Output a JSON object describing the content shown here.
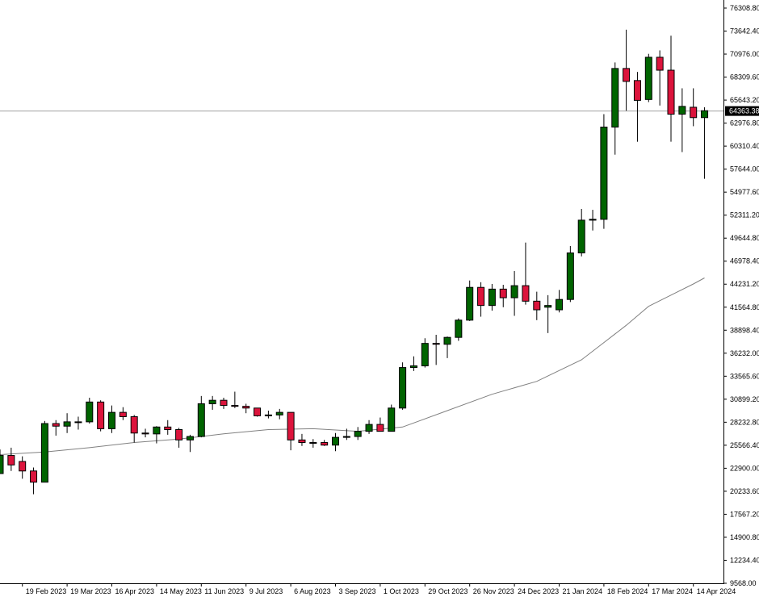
{
  "chart_data": {
    "type": "candlestick",
    "title": "",
    "xlabel": "",
    "ylabel": "",
    "ylim": [
      9568.0,
      76308.8
    ],
    "grid": false,
    "y_ticks": [
      "76308.80",
      "73642.40",
      "70976.00",
      "68309.60",
      "65643.20",
      "62976.80",
      "60310.40",
      "57644.00",
      "54977.60",
      "52311.20",
      "49644.80",
      "46978.40",
      "44231.20",
      "41564.80",
      "38898.40",
      "36232.00",
      "33565.60",
      "30899.20",
      "28232.80",
      "25566.40",
      "22900.00",
      "20233.60",
      "17567.20",
      "14900.80",
      "12234.40",
      "9568.00"
    ],
    "x_ticks": [
      "19 Feb 2023",
      "19 Mar 2023",
      "16 Apr 2023",
      "14 May 2023",
      "11 Jun 2023",
      "9 Jul 2023",
      "6 Aug 2023",
      "3 Sep 2023",
      "1 Oct 2023",
      "29 Oct 2023",
      "26 Nov 2023",
      "24 Dec 2023",
      "21 Jan 2024",
      "18 Feb 2024",
      "17 Mar 2024",
      "14 Apr 2024"
    ],
    "x_tick_index": [
      2,
      6,
      10,
      14,
      18,
      22,
      26,
      30,
      34,
      38,
      42,
      46,
      50,
      54,
      58,
      62
    ],
    "current_price": "64363.38",
    "current_price_value": 64363.38,
    "colors": {
      "up": "#006400",
      "down": "#dc143c",
      "ma": "#808080",
      "price_line": "#a0a0a0"
    },
    "candles": [
      {
        "o": 22300,
        "h": 25100,
        "l": 22300,
        "c": 24400
      },
      {
        "o": 24400,
        "h": 25300,
        "l": 22600,
        "c": 23300
      },
      {
        "o": 23700,
        "h": 24300,
        "l": 21700,
        "c": 22600
      },
      {
        "o": 22600,
        "h": 23000,
        "l": 19900,
        "c": 21300
      },
      {
        "o": 21300,
        "h": 28400,
        "l": 21300,
        "c": 28100
      },
      {
        "o": 28100,
        "h": 28500,
        "l": 26700,
        "c": 27800
      },
      {
        "o": 27800,
        "h": 29300,
        "l": 27000,
        "c": 28300
      },
      {
        "o": 28300,
        "h": 28900,
        "l": 27400,
        "c": 28300
      },
      {
        "o": 28300,
        "h": 31100,
        "l": 28100,
        "c": 30600
      },
      {
        "o": 30600,
        "h": 30800,
        "l": 27200,
        "c": 27500
      },
      {
        "o": 27500,
        "h": 30200,
        "l": 27000,
        "c": 29400
      },
      {
        "o": 29400,
        "h": 30000,
        "l": 28500,
        "c": 28900
      },
      {
        "o": 28900,
        "h": 29100,
        "l": 25900,
        "c": 27000
      },
      {
        "o": 27000,
        "h": 27500,
        "l": 26500,
        "c": 26900
      },
      {
        "o": 26900,
        "h": 27800,
        "l": 25800,
        "c": 27700
      },
      {
        "o": 27700,
        "h": 28500,
        "l": 26800,
        "c": 27400
      },
      {
        "o": 27400,
        "h": 27600,
        "l": 25300,
        "c": 26200
      },
      {
        "o": 26200,
        "h": 26800,
        "l": 24800,
        "c": 26600
      },
      {
        "o": 26600,
        "h": 31300,
        "l": 26500,
        "c": 30400
      },
      {
        "o": 30400,
        "h": 31300,
        "l": 29700,
        "c": 30800
      },
      {
        "o": 30800,
        "h": 31100,
        "l": 29800,
        "c": 30200
      },
      {
        "o": 30200,
        "h": 31800,
        "l": 29900,
        "c": 30100
      },
      {
        "o": 30100,
        "h": 30400,
        "l": 29300,
        "c": 29900
      },
      {
        "o": 29900,
        "h": 29900,
        "l": 28900,
        "c": 29000
      },
      {
        "o": 29000,
        "h": 29600,
        "l": 28700,
        "c": 29100
      },
      {
        "o": 29100,
        "h": 29800,
        "l": 28600,
        "c": 29400
      },
      {
        "o": 29400,
        "h": 29400,
        "l": 25000,
        "c": 26200
      },
      {
        "o": 26200,
        "h": 26900,
        "l": 25500,
        "c": 25900
      },
      {
        "o": 25900,
        "h": 26300,
        "l": 25300,
        "c": 25900
      },
      {
        "o": 25900,
        "h": 26200,
        "l": 25500,
        "c": 25600
      },
      {
        "o": 25600,
        "h": 27000,
        "l": 24900,
        "c": 26500
      },
      {
        "o": 26500,
        "h": 27500,
        "l": 26200,
        "c": 26600
      },
      {
        "o": 26600,
        "h": 27700,
        "l": 26200,
        "c": 27200
      },
      {
        "o": 27200,
        "h": 28500,
        "l": 26900,
        "c": 28000
      },
      {
        "o": 28000,
        "h": 28800,
        "l": 27400,
        "c": 27200
      },
      {
        "o": 27200,
        "h": 30300,
        "l": 27200,
        "c": 29900
      },
      {
        "o": 29900,
        "h": 35200,
        "l": 29700,
        "c": 34600
      },
      {
        "o": 34600,
        "h": 35900,
        "l": 34200,
        "c": 34800
      },
      {
        "o": 34800,
        "h": 38000,
        "l": 34600,
        "c": 37400
      },
      {
        "o": 37400,
        "h": 38400,
        "l": 34900,
        "c": 37300
      },
      {
        "o": 37300,
        "h": 38200,
        "l": 35700,
        "c": 38100
      },
      {
        "o": 38100,
        "h": 40300,
        "l": 37700,
        "c": 40100
      },
      {
        "o": 40100,
        "h": 44700,
        "l": 40000,
        "c": 43900
      },
      {
        "o": 43900,
        "h": 44500,
        "l": 40500,
        "c": 41800
      },
      {
        "o": 41800,
        "h": 44300,
        "l": 41200,
        "c": 43700
      },
      {
        "o": 43700,
        "h": 44200,
        "l": 41600,
        "c": 42700
      },
      {
        "o": 42700,
        "h": 45800,
        "l": 40600,
        "c": 44100
      },
      {
        "o": 44100,
        "h": 49100,
        "l": 41900,
        "c": 42300
      },
      {
        "o": 42300,
        "h": 43400,
        "l": 40100,
        "c": 41300
      },
      {
        "o": 41600,
        "h": 43000,
        "l": 38600,
        "c": 41800
      },
      {
        "o": 41300,
        "h": 43600,
        "l": 41000,
        "c": 42500
      },
      {
        "o": 42500,
        "h": 48700,
        "l": 42200,
        "c": 47900
      },
      {
        "o": 47900,
        "h": 53000,
        "l": 47500,
        "c": 51700
      },
      {
        "o": 51700,
        "h": 52900,
        "l": 50500,
        "c": 51800
      },
      {
        "o": 51800,
        "h": 64000,
        "l": 50700,
        "c": 62500
      },
      {
        "o": 62500,
        "h": 70000,
        "l": 59300,
        "c": 69300
      },
      {
        "o": 69300,
        "h": 73800,
        "l": 64400,
        "c": 67800
      },
      {
        "o": 67900,
        "h": 68900,
        "l": 60800,
        "c": 65600
      },
      {
        "o": 65700,
        "h": 71000,
        "l": 65400,
        "c": 70600
      },
      {
        "o": 70600,
        "h": 71400,
        "l": 65000,
        "c": 69100
      },
      {
        "o": 69100,
        "h": 73100,
        "l": 60800,
        "c": 64000
      },
      {
        "o": 64000,
        "h": 67000,
        "l": 59600,
        "c": 64900
      },
      {
        "o": 64800,
        "h": 67000,
        "l": 62600,
        "c": 63600
      },
      {
        "o": 63600,
        "h": 64800,
        "l": 56500,
        "c": 64400
      }
    ],
    "ma_series": [
      {
        "i": 0,
        "v": 24500
      },
      {
        "i": 4,
        "v": 24800
      },
      {
        "i": 8,
        "v": 25300
      },
      {
        "i": 12,
        "v": 25900
      },
      {
        "i": 16,
        "v": 26300
      },
      {
        "i": 20,
        "v": 26900
      },
      {
        "i": 24,
        "v": 27400
      },
      {
        "i": 28,
        "v": 27500
      },
      {
        "i": 32,
        "v": 27200
      },
      {
        "i": 36,
        "v": 27700
      },
      {
        "i": 40,
        "v": 29600
      },
      {
        "i": 44,
        "v": 31500
      },
      {
        "i": 48,
        "v": 33000
      },
      {
        "i": 52,
        "v": 35500
      },
      {
        "i": 54,
        "v": 37500
      },
      {
        "i": 56,
        "v": 39500
      },
      {
        "i": 58,
        "v": 41700
      },
      {
        "i": 60,
        "v": 43000
      },
      {
        "i": 62,
        "v": 44300
      },
      {
        "i": 63,
        "v": 45000
      }
    ]
  }
}
